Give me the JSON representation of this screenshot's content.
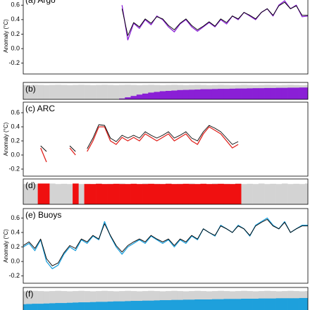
{
  "chart_data": [
    {
      "type": "line",
      "title": "(a) Argo",
      "ylabel": "Anomaly (°C)",
      "ylim": [
        -0.35,
        0.7
      ],
      "yticks": [
        0.6,
        0.4,
        0.2,
        {
          "value": 0,
          "label": "0.0"
        },
        -0.2
      ],
      "series": [
        {
          "color": "#8a1fd6",
          "values": [
            null,
            null,
            null,
            null,
            null,
            null,
            null,
            null,
            null,
            null,
            null,
            null,
            null,
            null,
            null,
            null,
            null,
            0.6,
            0.12,
            0.35,
            0.28,
            0.4,
            0.33,
            0.45,
            0.4,
            0.3,
            0.23,
            0.34,
            0.4,
            0.3,
            0.24,
            0.3,
            0.36,
            0.3,
            0.4,
            0.34,
            0.45,
            0.4,
            0.5,
            0.45,
            0.4,
            0.5,
            0.55,
            0.45,
            0.6,
            0.66,
            0.55,
            0.6,
            0.44,
            0.45
          ]
        },
        {
          "color": "#000000",
          "values": [
            null,
            null,
            null,
            null,
            null,
            null,
            null,
            null,
            null,
            null,
            null,
            null,
            null,
            null,
            null,
            null,
            null,
            0.55,
            0.18,
            0.36,
            0.3,
            0.41,
            0.35,
            0.44,
            0.41,
            0.32,
            0.26,
            0.35,
            0.41,
            0.32,
            0.26,
            0.31,
            0.37,
            0.31,
            0.41,
            0.36,
            0.45,
            0.41,
            0.5,
            0.46,
            0.41,
            0.5,
            0.55,
            0.46,
            0.59,
            0.64,
            0.55,
            0.59,
            0.46,
            0.46
          ]
        }
      ]
    },
    {
      "type": "coverage",
      "title": "(b)",
      "ylim": [
        0,
        1
      ],
      "series": [
        {
          "color": "#d3d3d3",
          "values": [
            0.85,
            0.84,
            0.86,
            0.85,
            0.84,
            0.85,
            0.86,
            0.85,
            0.84,
            0.85,
            0.86,
            0.85,
            0.84,
            0.85,
            0.86,
            0.85,
            0.84,
            0.85,
            0.86,
            0.85,
            0.84,
            0.85,
            0.86,
            0.85,
            0.84,
            0.85,
            0.86,
            0.85,
            0.84,
            0.85,
            0.86,
            0.85,
            0.84,
            0.85,
            0.86,
            0.85,
            0.84,
            0.85,
            0.86,
            0.85,
            0.84,
            0.85,
            0.86,
            0.85,
            0.84,
            0.85,
            0.86,
            0.85,
            0.84,
            0.85
          ]
        },
        {
          "color": "#8a1fd6",
          "values": [
            null,
            null,
            null,
            null,
            null,
            null,
            null,
            null,
            null,
            null,
            null,
            null,
            null,
            null,
            null,
            null,
            null,
            0.05,
            0.12,
            0.2,
            0.28,
            0.34,
            0.4,
            0.44,
            0.48,
            0.5,
            0.52,
            0.55,
            0.56,
            0.57,
            0.58,
            0.6,
            0.6,
            0.61,
            0.62,
            0.62,
            0.63,
            0.64,
            0.64,
            0.65,
            0.66,
            0.66,
            0.67,
            0.67,
            0.68,
            0.68,
            0.69,
            0.69,
            0.7,
            0.7
          ]
        }
      ]
    },
    {
      "type": "line",
      "title": "(c) ARC",
      "ylabel": "Anomaly (°C)",
      "ylim": [
        -0.3,
        0.75
      ],
      "yticks": [
        0.6,
        0.4,
        0.2,
        {
          "value": 0,
          "label": "0.0"
        },
        -0.2
      ],
      "series": [
        {
          "color": "#e0201b",
          "values": [
            null,
            null,
            null,
            0.1,
            -0.1,
            null,
            null,
            null,
            0.1,
            0.0,
            null,
            0.05,
            0.2,
            0.4,
            0.4,
            0.2,
            0.15,
            0.25,
            0.2,
            0.25,
            0.2,
            0.3,
            0.25,
            0.2,
            0.25,
            0.3,
            0.2,
            0.25,
            0.3,
            0.2,
            0.15,
            0.3,
            0.4,
            0.35,
            0.3,
            0.2,
            0.1,
            0.15,
            null,
            null,
            null,
            null,
            null,
            null,
            null,
            null,
            null,
            null,
            null,
            null
          ]
        },
        {
          "color": "#000000",
          "values": [
            null,
            null,
            null,
            0.13,
            0.05,
            null,
            null,
            null,
            0.13,
            0.05,
            null,
            0.09,
            0.24,
            0.43,
            0.42,
            0.24,
            0.19,
            0.28,
            0.24,
            0.28,
            0.24,
            0.33,
            0.28,
            0.24,
            0.28,
            0.33,
            0.24,
            0.28,
            0.33,
            0.24,
            0.2,
            0.33,
            0.42,
            0.38,
            0.33,
            0.24,
            0.15,
            0.19,
            null,
            null,
            null,
            null,
            null,
            null,
            null,
            null,
            null,
            null,
            null,
            null
          ]
        }
      ]
    },
    {
      "type": "coverage",
      "title": "(d)",
      "ylim": [
        0,
        1
      ],
      "series": [
        {
          "color": "#d3d3d3",
          "values": [
            0.8,
            0.82,
            0.8,
            0.81,
            0.8,
            0.82,
            0.8,
            0.81,
            0.8,
            0.82,
            0.8,
            0.81,
            0.8,
            0.82,
            0.8,
            0.81,
            0.8,
            0.82,
            0.8,
            0.81,
            0.8,
            0.82,
            0.8,
            0.81,
            0.8,
            0.82,
            0.8,
            0.81,
            0.8,
            0.82,
            0.8,
            0.81,
            0.8,
            0.82,
            0.8,
            0.81,
            0.8,
            0.82,
            0.8,
            0.81,
            0.8,
            0.82,
            0.8,
            0.81,
            0.8,
            0.82,
            0.8,
            0.81,
            0.8,
            0.82
          ]
        },
        {
          "color": "#f01010",
          "values": [
            null,
            null,
            null,
            0.82,
            0.82,
            null,
            null,
            null,
            null,
            0.82,
            null,
            0.8,
            0.8,
            0.81,
            0.8,
            0.8,
            0.81,
            0.8,
            0.8,
            0.81,
            0.8,
            0.8,
            0.81,
            0.8,
            0.8,
            0.81,
            0.8,
            0.8,
            0.81,
            0.8,
            0.8,
            0.81,
            0.8,
            0.8,
            0.81,
            0.8,
            0.8,
            0.81,
            null,
            null,
            null,
            null,
            null,
            null,
            null,
            null,
            null,
            null,
            null,
            null
          ]
        }
      ]
    },
    {
      "type": "line",
      "title": "(e) Buoys",
      "ylabel": "Anomaly (°C)",
      "ylim": [
        -0.3,
        0.73
      ],
      "yticks": [
        0.6,
        0.4,
        0.2,
        {
          "value": 0,
          "label": "0.0"
        },
        -0.2
      ],
      "series": [
        {
          "color": "#1ea0dc",
          "values": [
            0.2,
            0.25,
            0.15,
            0.3,
            0.0,
            -0.1,
            -0.05,
            0.1,
            0.2,
            0.15,
            0.3,
            0.25,
            0.35,
            0.3,
            0.55,
            0.35,
            0.2,
            0.1,
            0.2,
            0.25,
            0.3,
            0.25,
            0.35,
            0.3,
            0.25,
            0.3,
            0.2,
            0.3,
            0.25,
            0.35,
            0.3,
            0.45,
            0.4,
            0.35,
            0.5,
            0.45,
            0.4,
            0.5,
            0.45,
            0.35,
            0.5,
            0.55,
            0.6,
            0.5,
            0.45,
            0.55,
            0.4,
            0.45,
            0.5,
            0.5
          ]
        },
        {
          "color": "#000000",
          "values": [
            0.22,
            0.27,
            0.18,
            0.31,
            0.04,
            -0.06,
            -0.02,
            0.12,
            0.22,
            0.18,
            0.31,
            0.27,
            0.36,
            0.31,
            0.52,
            0.36,
            0.22,
            0.13,
            0.22,
            0.27,
            0.31,
            0.27,
            0.36,
            0.31,
            0.27,
            0.31,
            0.22,
            0.31,
            0.27,
            0.36,
            0.31,
            0.45,
            0.4,
            0.36,
            0.49,
            0.45,
            0.4,
            0.49,
            0.45,
            0.36,
            0.49,
            0.54,
            0.58,
            0.49,
            0.45,
            0.54,
            0.4,
            0.45,
            0.49,
            0.49
          ]
        }
      ]
    },
    {
      "type": "coverage",
      "title": "(f)",
      "ylim": [
        0,
        1
      ],
      "series": [
        {
          "color": "#d3d3d3",
          "values": [
            0.84,
            0.85,
            0.86,
            0.85,
            0.84,
            0.85,
            0.86,
            0.85,
            0.84,
            0.85,
            0.86,
            0.85,
            0.84,
            0.85,
            0.86,
            0.85,
            0.84,
            0.85,
            0.86,
            0.85,
            0.84,
            0.85,
            0.86,
            0.85,
            0.84,
            0.85,
            0.86,
            0.85,
            0.84,
            0.85,
            0.86,
            0.85,
            0.84,
            0.85,
            0.86,
            0.85,
            0.84,
            0.85,
            0.86,
            0.85,
            0.84,
            0.85,
            0.86,
            0.85,
            0.84,
            0.85,
            0.86,
            0.85,
            0.84,
            0.85
          ]
        },
        {
          "color": "#1ea0dc",
          "values": [
            0.3,
            0.31,
            0.32,
            0.32,
            0.33,
            0.34,
            0.35,
            0.35,
            0.36,
            0.37,
            0.38,
            0.38,
            0.39,
            0.4,
            0.4,
            0.41,
            0.42,
            0.42,
            0.43,
            0.44,
            0.44,
            0.45,
            0.45,
            0.46,
            0.47,
            0.47,
            0.48,
            0.48,
            0.49,
            0.49,
            0.5,
            0.5,
            0.5,
            0.51,
            0.51,
            0.52,
            0.52,
            0.52,
            0.53,
            0.53,
            0.53,
            0.54,
            0.54,
            0.54,
            0.55,
            0.55,
            0.55,
            0.55,
            0.56,
            0.56
          ]
        }
      ]
    }
  ]
}
